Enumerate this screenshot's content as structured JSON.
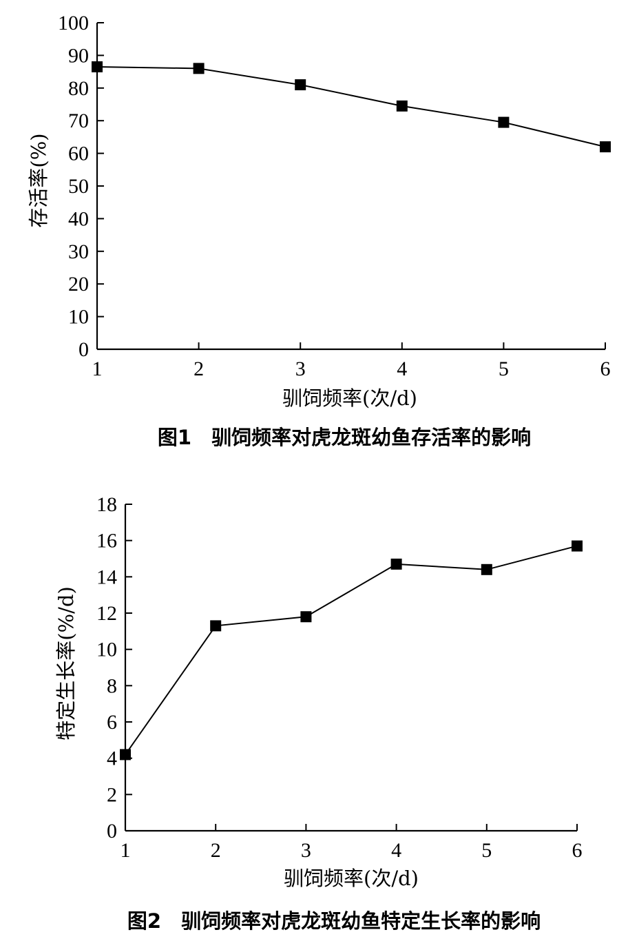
{
  "chart_data": [
    {
      "type": "line",
      "title": "图1　驯饲频率对虎龙斑幼鱼存活率的影响",
      "xlabel": "驯饲频率(次/d)",
      "ylabel": "存活率(%)",
      "x": [
        1,
        2,
        3,
        4,
        5,
        6
      ],
      "series": [
        {
          "values": [
            86.5,
            86,
            81,
            74.5,
            69.5,
            62
          ]
        }
      ],
      "xlim": [
        1,
        6
      ],
      "ylim": [
        0,
        100
      ],
      "xticks": [
        "1",
        "2",
        "3",
        "4",
        "5",
        "6"
      ],
      "yticks": [
        "0",
        "10",
        "20",
        "30",
        "40",
        "50",
        "60",
        "70",
        "80",
        "90",
        "100"
      ],
      "marker": "square",
      "grid": false,
      "color": "#000000"
    },
    {
      "type": "line",
      "title": "图2　驯饲频率对虎龙斑幼鱼特定生长率的影响",
      "xlabel": "驯饲频率(次/d)",
      "ylabel": "特定生长率(%/d)",
      "x": [
        1,
        2,
        3,
        4,
        5,
        6
      ],
      "series": [
        {
          "values": [
            4.2,
            11.3,
            11.8,
            14.7,
            14.4,
            15.7
          ]
        }
      ],
      "xlim": [
        1,
        6
      ],
      "ylim": [
        0,
        18
      ],
      "xticks": [
        "1",
        "2",
        "3",
        "4",
        "5",
        "6"
      ],
      "yticks": [
        "0",
        "2",
        "4",
        "6",
        "8",
        "10",
        "12",
        "14",
        "16",
        "18"
      ],
      "marker": "square",
      "grid": false,
      "color": "#000000"
    }
  ]
}
